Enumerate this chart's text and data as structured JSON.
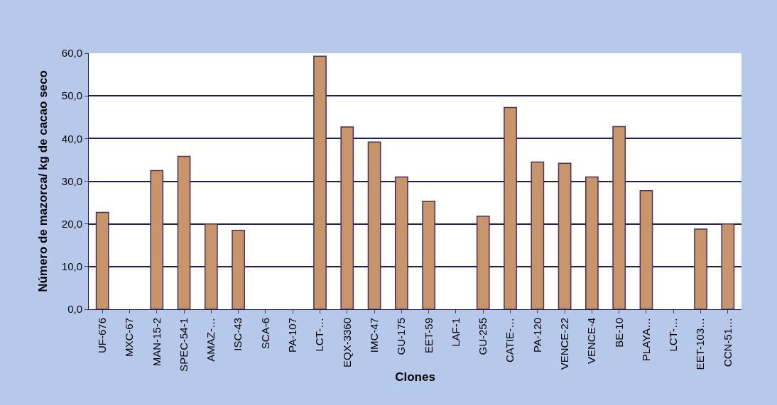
{
  "chart_data": {
    "type": "bar",
    "xlabel": "Clones",
    "ylabel": "Número de mazorca/ kg de cacao seco",
    "categories": [
      "UF-676",
      "MXC-67",
      "MAN-15-2",
      "SPEC-54-1",
      "AMAZ-…",
      "ISC-43",
      "SCA-6",
      "PA-107",
      "LCT-…",
      "EQX-3360",
      "IMC-47",
      "GU-175",
      "EET-59",
      "LAF-1",
      "GU-255",
      "CATIE-…",
      "PA-120",
      "VENCE-22",
      "VENCE-4",
      "BE-10",
      "PLAYA…",
      "LCT-…",
      "EET-103…",
      "CCN-51…"
    ],
    "values": [
      22.7,
      null,
      32.5,
      35.8,
      20.0,
      18.5,
      null,
      null,
      59.3,
      42.7,
      39.2,
      31.0,
      25.3,
      null,
      21.8,
      47.3,
      34.5,
      34.2,
      31.0,
      42.8,
      27.8,
      null,
      18.8,
      20.0
    ],
    "color": "#c8946a",
    "ylim": [
      0,
      60
    ],
    "yticks": [
      {
        "value": 0,
        "label": "0,0"
      },
      {
        "value": 10,
        "label": "10,0"
      },
      {
        "value": 20,
        "label": "20,0"
      },
      {
        "value": 30,
        "label": "30,0"
      },
      {
        "value": 40,
        "label": "40,0"
      },
      {
        "value": 50,
        "label": "50,0"
      },
      {
        "value": 60,
        "label": "60,0"
      }
    ],
    "grid": "y"
  }
}
